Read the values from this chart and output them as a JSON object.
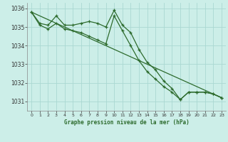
{
  "title": "Graphe pression niveau de la mer (hPa)",
  "background_color": "#cceee8",
  "grid_color": "#aad8d2",
  "line_color": "#2d6b2d",
  "xlim": [
    -0.5,
    23.5
  ],
  "ylim": [
    1030.5,
    1036.3
  ],
  "yticks": [
    1031,
    1032,
    1033,
    1034,
    1035,
    1036
  ],
  "xticks": [
    0,
    1,
    2,
    3,
    4,
    5,
    6,
    7,
    8,
    9,
    10,
    11,
    12,
    13,
    14,
    15,
    16,
    17,
    18,
    19,
    20,
    21,
    22,
    23
  ],
  "series": [
    {
      "x": [
        0,
        1,
        2,
        3,
        4,
        5,
        6,
        7,
        8,
        9,
        10,
        11,
        12,
        13,
        14,
        15,
        16,
        17,
        18,
        19,
        20,
        21,
        22,
        23
      ],
      "y": [
        1035.8,
        1035.2,
        1035.1,
        1035.6,
        1035.1,
        1035.1,
        1035.2,
        1035.3,
        1035.2,
        1035.0,
        1035.9,
        1035.1,
        1034.7,
        1033.8,
        1033.1,
        1032.7,
        1032.1,
        1031.7,
        1031.1,
        1031.5,
        1031.5,
        1031.5,
        1031.4,
        1031.2
      ]
    },
    {
      "x": [
        0,
        1,
        2,
        3,
        4,
        5,
        6,
        7,
        8,
        9,
        10,
        11,
        12,
        13,
        14,
        15,
        16,
        17,
        18,
        19,
        20,
        21,
        22,
        23
      ],
      "y": [
        1035.8,
        1035.1,
        1034.9,
        1035.2,
        1034.9,
        1034.8,
        1034.7,
        1034.5,
        1034.3,
        1034.1,
        1035.6,
        1034.8,
        1034.0,
        1033.2,
        1032.6,
        1032.2,
        1031.8,
        1031.5,
        1031.1,
        1031.5,
        1031.5,
        1031.5,
        1031.4,
        1031.2
      ]
    },
    {
      "x": [
        0,
        23
      ],
      "y": [
        1035.8,
        1031.2
      ]
    }
  ]
}
